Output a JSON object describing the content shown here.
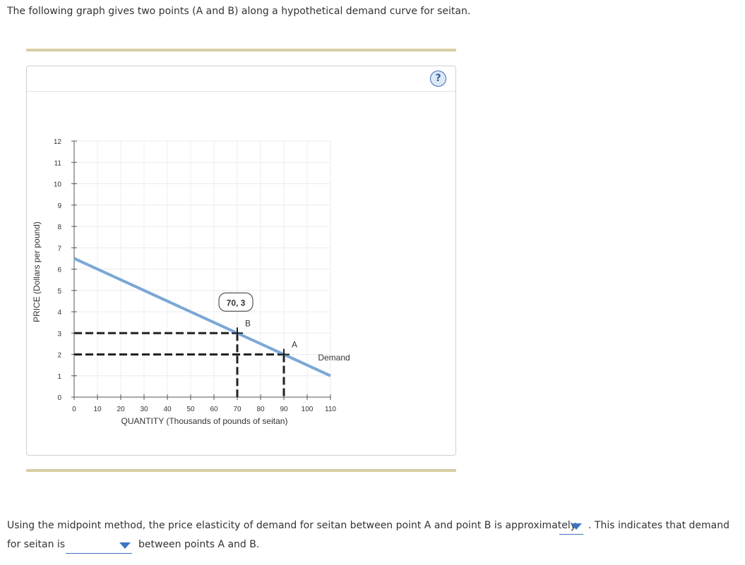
{
  "intro_text": "The following graph gives two points (A and B) along a hypothetical demand curve for seitan.",
  "help_label": "?",
  "question": {
    "part1": "Using the midpoint method, the price elasticity of demand for seitan between point A and point B is approximately",
    "part2": ". This indicates that demand",
    "part3": "for seitan is",
    "part4": "between points A and B.",
    "dropdown1_value": "",
    "dropdown2_value": ""
  },
  "colors": {
    "demand_line": "#7ba7d6",
    "rule": "#d8cfa3",
    "help": "#3d6fb6",
    "dropdown": "#3d74c2"
  },
  "chart_data": {
    "type": "line",
    "xlabel": "QUANTITY (Thousands of pounds of seitan)",
    "ylabel": "PRICE (Dollars per pound)",
    "xlim": [
      0,
      110
    ],
    "ylim": [
      0,
      12
    ],
    "x_ticks": [
      0,
      10,
      20,
      30,
      40,
      50,
      60,
      70,
      80,
      90,
      100,
      110
    ],
    "y_ticks": [
      0,
      1,
      2,
      3,
      4,
      5,
      6,
      7,
      8,
      9,
      10,
      11,
      12
    ],
    "grid": true,
    "series": [
      {
        "name": "Demand",
        "x": [
          0,
          110
        ],
        "y": [
          6.5,
          1
        ]
      }
    ],
    "points": [
      {
        "label": "B",
        "x": 70,
        "y": 3
      },
      {
        "label": "A",
        "x": 90,
        "y": 2
      }
    ],
    "tooltip": "70, 3"
  }
}
